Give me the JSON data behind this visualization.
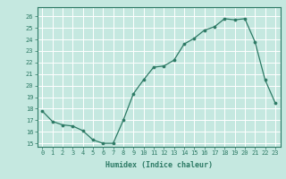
{
  "x": [
    0,
    1,
    2,
    3,
    4,
    5,
    6,
    7,
    8,
    9,
    10,
    11,
    12,
    13,
    14,
    15,
    16,
    17,
    18,
    19,
    20,
    21,
    22,
    23
  ],
  "y": [
    17.8,
    16.9,
    16.6,
    16.5,
    16.1,
    15.3,
    15.0,
    15.0,
    17.0,
    19.3,
    20.5,
    21.6,
    21.7,
    22.2,
    23.6,
    24.1,
    24.8,
    25.1,
    25.8,
    25.7,
    25.8,
    23.8,
    20.5,
    18.5
  ],
  "xlabel": "Humidex (Indice chaleur)",
  "xlim": [
    -0.5,
    23.5
  ],
  "ylim": [
    14.7,
    26.8
  ],
  "yticks": [
    15,
    16,
    17,
    18,
    19,
    20,
    21,
    22,
    23,
    24,
    25,
    26
  ],
  "xticks": [
    0,
    1,
    2,
    3,
    4,
    5,
    6,
    7,
    8,
    9,
    10,
    11,
    12,
    13,
    14,
    15,
    16,
    17,
    18,
    19,
    20,
    21,
    22,
    23
  ],
  "line_color": "#2d7a65",
  "bg_color": "#c5e8e0",
  "grid_color": "#b0d8d0",
  "tick_color": "#2d7a65",
  "label_color": "#2d7a65",
  "spine_color": "#2d7a65"
}
